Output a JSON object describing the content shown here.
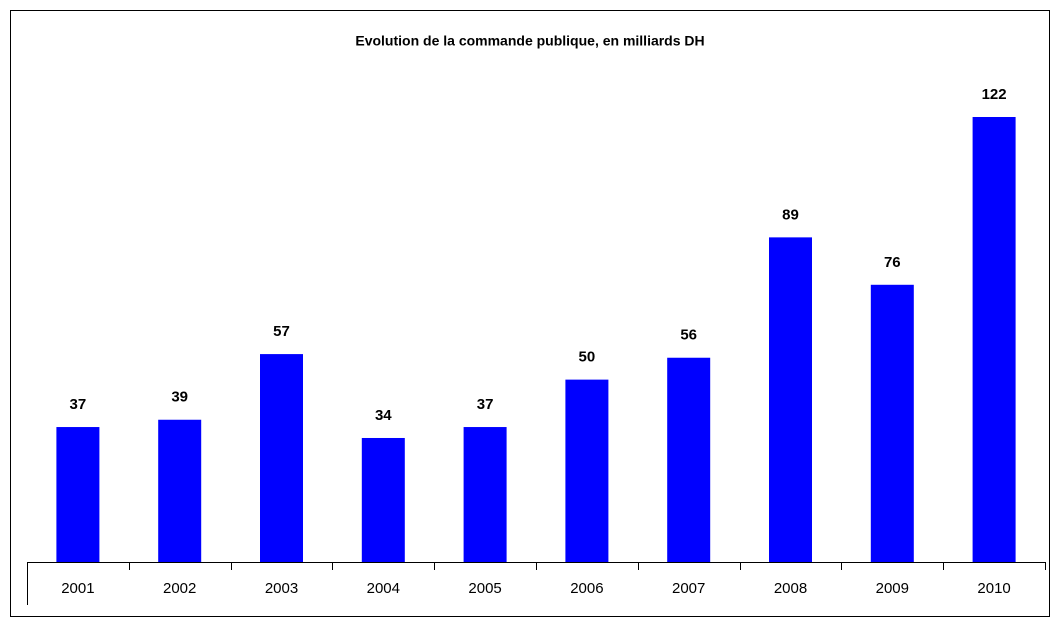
{
  "chart_data": {
    "type": "bar",
    "title": "Evolution de la commande publique, en milliards DH",
    "categories": [
      "2001",
      "2002",
      "2003",
      "2004",
      "2005",
      "2006",
      "2007",
      "2008",
      "2009",
      "2010"
    ],
    "values": [
      37,
      39,
      57,
      34,
      37,
      50,
      56,
      89,
      76,
      122
    ],
    "color": "#0000ff"
  }
}
